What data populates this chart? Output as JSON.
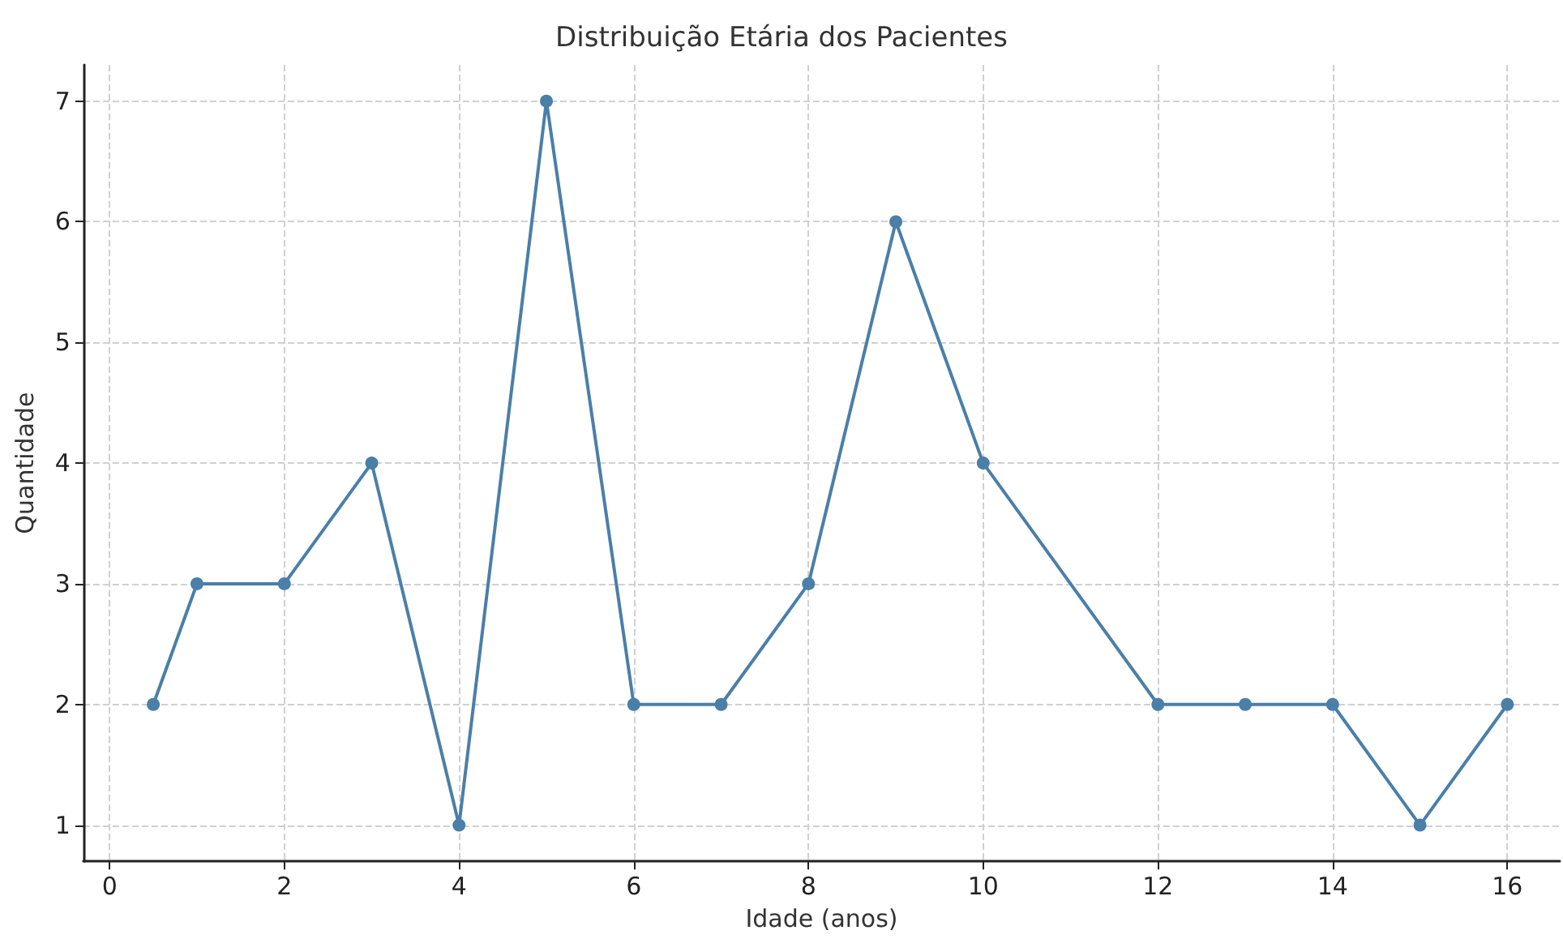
{
  "chart_data": {
    "type": "line",
    "title": "Distribuição Etária dos Pacientes",
    "xlabel": "Idade (anos)",
    "ylabel": "Quantidade",
    "x": [
      0.5,
      1,
      2,
      3,
      4,
      5,
      6,
      7,
      8,
      9,
      10,
      12,
      13,
      14,
      15,
      16
    ],
    "series": [
      {
        "color": "#4a7fa8",
        "values": [
          2,
          3,
          3,
          4,
          1,
          7,
          2,
          2,
          3,
          6,
          4,
          2,
          2,
          2,
          1,
          2
        ]
      }
    ],
    "xlim": [
      -0.3,
      16.6
    ],
    "xticks": [
      0,
      2,
      4,
      6,
      8,
      10,
      12,
      14,
      16
    ],
    "ylim": [
      0.7,
      7.3
    ],
    "yticks": [
      1,
      2,
      3,
      4,
      5,
      6,
      7
    ],
    "grid": true,
    "marker": "circle",
    "line_style": "solid"
  }
}
